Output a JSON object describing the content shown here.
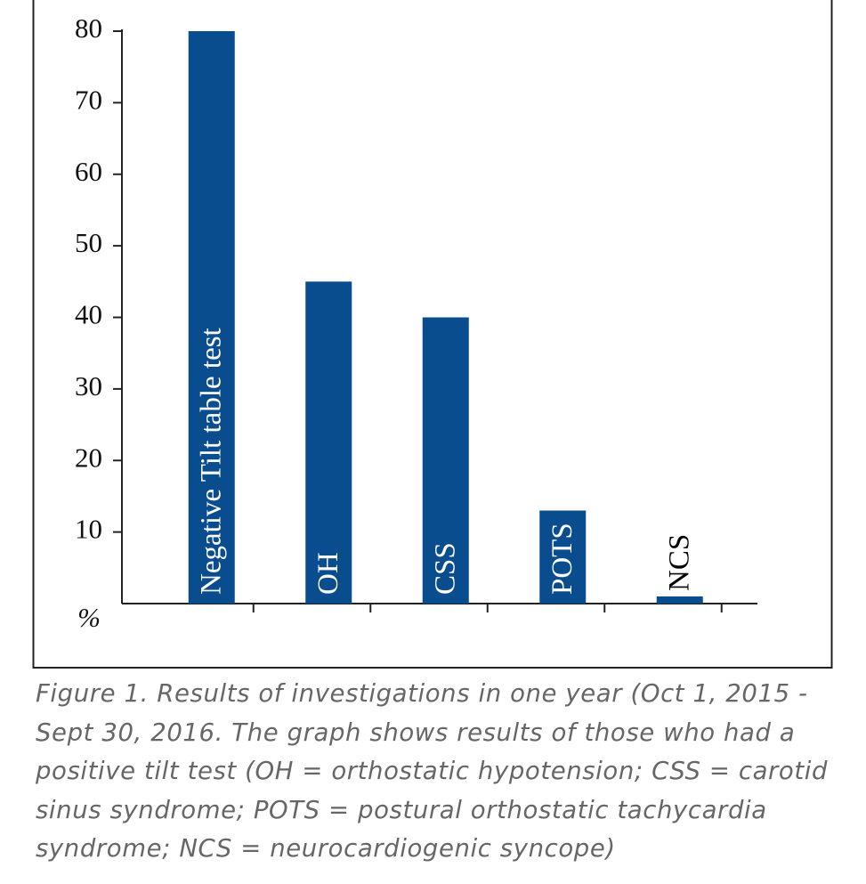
{
  "chart_data": {
    "type": "bar",
    "categories": [
      "Negative Tilt table test",
      "OH",
      "CSS",
      "POTS",
      "NCS"
    ],
    "values": [
      80,
      45,
      40,
      13,
      1
    ],
    "color": "#0a4d8f",
    "y_label": "%",
    "ylim": [
      0,
      80
    ],
    "yticks": [
      10,
      20,
      30,
      40,
      50,
      60,
      70,
      80
    ],
    "grid": false
  },
  "caption": [
    "Figure 1. Results of investigations in one year (Oct 1, 2015 -",
    "Sept 30, 2016. The graph shows results of those who had a",
    "positive tilt test (OH = orthostatic hypotension; CSS = carotid",
    "sinus syndrome; POTS = postural orthostatic tachycardia",
    "syndrome; NCS = neurocardiogenic syncope)"
  ]
}
